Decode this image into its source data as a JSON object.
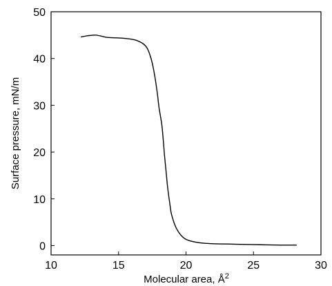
{
  "chart_data": {
    "type": "line",
    "title": "",
    "xlabel": "Molecular area, Å",
    "xlabel_superscript": "2",
    "ylabel": "Surface pressure, mN/m",
    "xlim": [
      10,
      30
    ],
    "ylim": [
      -2,
      50
    ],
    "xticks": [
      10,
      15,
      20,
      25,
      30
    ],
    "yticks": [
      0,
      10,
      20,
      30,
      40,
      50
    ],
    "grid": false,
    "legend": "none",
    "series": [
      {
        "color": "#000000",
        "x": [
          12.2,
          12.8,
          13.3,
          13.7,
          14.2,
          15.0,
          15.8,
          16.3,
          16.8,
          17.1,
          17.3,
          17.5,
          17.7,
          17.9,
          18.0,
          18.2,
          18.3,
          18.4,
          18.5,
          18.6,
          18.7,
          18.8,
          18.9,
          19.1,
          19.3,
          19.6,
          19.9,
          20.3,
          21.0,
          22.0,
          23.5,
          25.0,
          27.0,
          28.2
        ],
        "y": [
          44.6,
          44.9,
          45.0,
          44.8,
          44.5,
          44.4,
          44.2,
          43.9,
          43.2,
          42.3,
          41.0,
          39.0,
          36.0,
          32.0,
          29.5,
          26.0,
          23.0,
          19.5,
          16.5,
          13.5,
          11.0,
          9.0,
          7.0,
          5.0,
          3.6,
          2.3,
          1.5,
          1.0,
          0.6,
          0.4,
          0.3,
          0.2,
          0.1,
          0.1
        ]
      }
    ]
  }
}
